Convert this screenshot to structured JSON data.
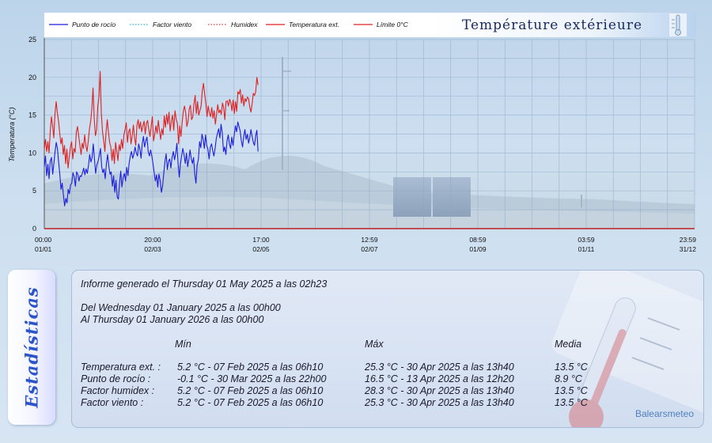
{
  "chart_data": {
    "type": "line",
    "title": "Température extérieure",
    "ylabel": "Temperatura (°C)",
    "ylim": [
      0,
      25
    ],
    "y_ticks": [
      "0",
      "5",
      "10",
      "15",
      "20",
      "25"
    ],
    "x_ticks": [
      {
        "time": "00:00",
        "date": "01/01"
      },
      {
        "time": "20:00",
        "date": "02/03"
      },
      {
        "time": "17:00",
        "date": "02/05"
      },
      {
        "time": "12:59",
        "date": "02/07"
      },
      {
        "time": "08:59",
        "date": "01/09"
      },
      {
        "time": "03:59",
        "date": "01/11"
      },
      {
        "time": "23:59",
        "date": "31/12"
      }
    ],
    "xlim": [
      "2025-01-01",
      "2026-01-01"
    ],
    "grid": true,
    "legend_position": "top-left",
    "legend": [
      {
        "name": "Punto de rocío",
        "color": "#1c1ce0",
        "style": "solid"
      },
      {
        "name": "Factor viento",
        "color": "#22b8d8",
        "style": "dotted"
      },
      {
        "name": "Humidex",
        "color": "#e03a3a",
        "style": "dotted"
      },
      {
        "name": "Temperatura ext.",
        "color": "#e02020",
        "style": "solid"
      },
      {
        "name": "Límite 0°C",
        "color": "#e02020",
        "style": "solid"
      }
    ],
    "series": [
      {
        "name": "Temperatura ext.",
        "color": "#e02020",
        "x_start": "2025-01-01",
        "x_end": "2025-05-01",
        "values": [
          10.5,
          11.8,
          10.2,
          11.5,
          10.0,
          12.8,
          14.8,
          13.6,
          12.0,
          15.2,
          16.8,
          15.3,
          14.2,
          12.6,
          11.2,
          12.0,
          9.8,
          11.0,
          8.6,
          10.5,
          8.0,
          9.4,
          10.8,
          11.5,
          9.2,
          10.6,
          10.1,
          12.8,
          13.5,
          12.2,
          11.0,
          9.8,
          11.3,
          10.6,
          12.4,
          11.0,
          10.2,
          11.6,
          13.2,
          14.2,
          15.8,
          18.6,
          14.6,
          12.3,
          13.0,
          16.2,
          17.4,
          20.8,
          15.2,
          12.8,
          11.6,
          10.2,
          12.8,
          14.4,
          12.7,
          11.4,
          10.8,
          9.0,
          10.5,
          8.6,
          11.4,
          10.2,
          9.0,
          11.1,
          10.3,
          11.8,
          10.6,
          12.4,
          13.1,
          14.0,
          11.4,
          12.8,
          13.2,
          11.2,
          12.3,
          13.7,
          12.0,
          11.0,
          13.6,
          14.4,
          13.2,
          14.1,
          12.8,
          13.6,
          14.2,
          12.5,
          13.9,
          14.3,
          13.1,
          12.2,
          13.5,
          14.8,
          11.6,
          12.5,
          13.6,
          12.6,
          14.3,
          13.0,
          11.8,
          13.2,
          12.4,
          14.9,
          13.4,
          15.1,
          13.8,
          15.4,
          12.9,
          14.2,
          15.0,
          13.0,
          15.6,
          14.5,
          13.9,
          11.2,
          13.6,
          12.2,
          14.0,
          15.5,
          16.2,
          15.3,
          13.5,
          14.2,
          15.8,
          16.3,
          14.4,
          14.8,
          16.5,
          17.6,
          15.2,
          16.8,
          15.0,
          15.6,
          16.2,
          18.2,
          19.2,
          17.8,
          16.6,
          14.8,
          16.2,
          15.3,
          14.8,
          16.0,
          14.6,
          15.6,
          13.8,
          15.0,
          16.4,
          15.3,
          15.7,
          15.1,
          16.6,
          16.0,
          14.4,
          16.8,
          16.9,
          16.2,
          17.1,
          16.7,
          15.6,
          17.0,
          15.2,
          16.8,
          15.5,
          18.1,
          17.8,
          18.4,
          16.6,
          17.7,
          16.2,
          17.2,
          16.8,
          17.4,
          17.2,
          16.1,
          15.4,
          16.5,
          17.9,
          17.6,
          18.1,
          20.0,
          19.0
        ]
      },
      {
        "name": "Punto de rocío",
        "color": "#1c1ce0",
        "x_start": "2025-01-01",
        "x_end": "2025-05-01",
        "values": [
          8.2,
          9.6,
          7.0,
          8.5,
          6.6,
          8.9,
          9.4,
          7.2,
          8.6,
          10.2,
          11.4,
          10.6,
          8.8,
          7.2,
          5.2,
          6.0,
          4.4,
          3.0,
          4.0,
          3.4,
          5.2,
          4.6,
          5.8,
          6.0,
          7.4,
          6.9,
          5.6,
          7.5,
          7.2,
          6.3,
          7.0,
          6.9,
          7.4,
          8.0,
          7.1,
          7.9,
          7.3,
          8.4,
          9.8,
          8.8,
          9.4,
          11.2,
          9.2,
          7.3,
          8.4,
          8.9,
          9.6,
          10.6,
          8.2,
          7.4,
          7.9,
          6.6,
          8.6,
          9.8,
          8.3,
          7.2,
          7.5,
          5.6,
          7.0,
          4.8,
          6.4,
          4.2,
          3.9,
          6.0,
          7.6,
          5.5,
          6.7,
          7.3,
          6.3,
          8.1,
          7.0,
          8.6,
          9.6,
          10.2,
          9.3,
          9.8,
          10.8,
          10.0,
          9.6,
          11.2,
          10.5,
          9.3,
          11.2,
          12.2,
          10.8,
          11.6,
          12.1,
          10.2,
          9.6,
          10.4,
          9.6,
          8.6,
          7.4,
          6.3,
          7.1,
          5.5,
          7.2,
          6.4,
          4.8,
          5.6,
          7.3,
          8.9,
          9.9,
          7.8,
          8.9,
          9.2,
          8.0,
          9.4,
          10.2,
          9.1,
          9.9,
          11.3,
          8.6,
          6.8,
          8.6,
          9.6,
          10.6,
          9.8,
          8.6,
          10.0,
          8.2,
          9.1,
          10.4,
          9.3,
          8.6,
          9.4,
          7.2,
          6.0,
          8.4,
          9.2,
          11.5,
          10.7,
          12.5,
          11.8,
          10.6,
          12.4,
          11.0,
          10.5,
          9.2,
          10.8,
          11.2,
          10.3,
          9.6,
          10.6,
          11.9,
          12.6,
          13.2,
          12.0,
          13.8,
          12.6,
          10.2,
          10.8,
          9.8,
          11.6,
          12.4,
          11.2,
          10.6,
          12.1,
          11.0,
          12.4,
          13.6,
          12.8,
          14.1,
          13.5,
          12.9,
          11.6,
          10.8,
          12.2,
          13.1,
          11.8,
          12.5,
          11.3,
          12.0,
          13.1,
          12.2,
          11.4,
          11.0,
          12.3,
          13.0,
          10.2
        ]
      }
    ]
  },
  "stats": {
    "tab_label": "Estadísticas",
    "generated": "Informe generado el Thursday 01 May 2025 a las 02h23",
    "range_from": "Del Wednesday 01 January 2025 a las 00h00",
    "range_to": "Al Thursday 01 January 2026 a las 00h00",
    "headers": {
      "min": "Mín",
      "max": "Máx",
      "mean": "Media"
    },
    "rows": [
      {
        "label": "Temperatura ext. :",
        "min": "5.2 °C - 07 Feb 2025 a las 06h10",
        "max": "25.3 °C - 30 Apr 2025 a las 13h40",
        "mean": "13.5 °C"
      },
      {
        "label": "Punto de rocío :",
        "min": "-0.1 °C - 30 Mar 2025 a las 22h00",
        "max": "16.5 °C - 13 Apr 2025 a las 12h20",
        "mean": "8.9 °C"
      },
      {
        "label": "Factor humidex :",
        "min": "5.2 °C - 07 Feb 2025 a las 06h10",
        "max": "28.3 °C - 30 Apr 2025 a las 13h40",
        "mean": "13.5 °C"
      },
      {
        "label": "Factor viento :",
        "min": "5.2 °C - 07 Feb 2025 a las 06h10",
        "max": "25.3 °C - 30 Apr 2025 a las 13h40",
        "mean": "13.5 °C"
      }
    ],
    "credit": "Balearsmeteo"
  }
}
